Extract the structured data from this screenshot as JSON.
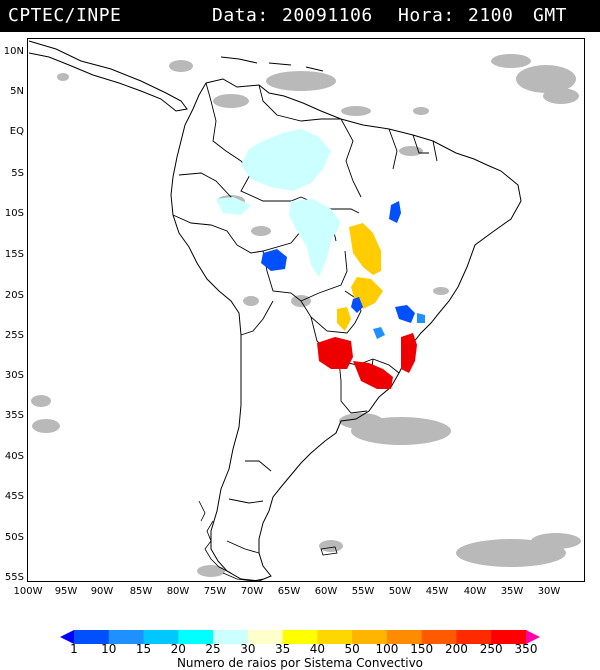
{
  "header": {
    "source": "CPTEC/INPE",
    "date_label": "Data:",
    "date_value": "20091106",
    "hour_label": "Hora:",
    "hour_value": "2100",
    "tz": "GMT"
  },
  "map": {
    "lat_ticks": [
      "10N",
      "5N",
      "EQ",
      "5S",
      "10S",
      "15S",
      "20S",
      "25S",
      "30S",
      "35S",
      "40S",
      "45S",
      "50S",
      "55S"
    ],
    "lon_ticks": [
      "100W",
      "95W",
      "90W",
      "85W",
      "80W",
      "75W",
      "70W",
      "65W",
      "60W",
      "55W",
      "50W",
      "45W",
      "40W",
      "35W",
      "30W"
    ],
    "colors": {
      "land_outline": "#000000",
      "clouds": "#b9b9b9"
    }
  },
  "legend": {
    "values": [
      "1",
      "10",
      "15",
      "20",
      "25",
      "30",
      "35",
      "40",
      "50",
      "100",
      "150",
      "200",
      "250",
      "350"
    ],
    "colors": [
      "#0000ff",
      "#0050ff",
      "#1e90ff",
      "#00c8ff",
      "#00ffff",
      "#ccffff",
      "#ffffcc",
      "#ffff00",
      "#ffd700",
      "#ffb400",
      "#ff8c00",
      "#ff5a00",
      "#ff2a00",
      "#ff0000",
      "#ff00aa"
    ],
    "title": "Numero de raios por Sistema Convectivo"
  }
}
